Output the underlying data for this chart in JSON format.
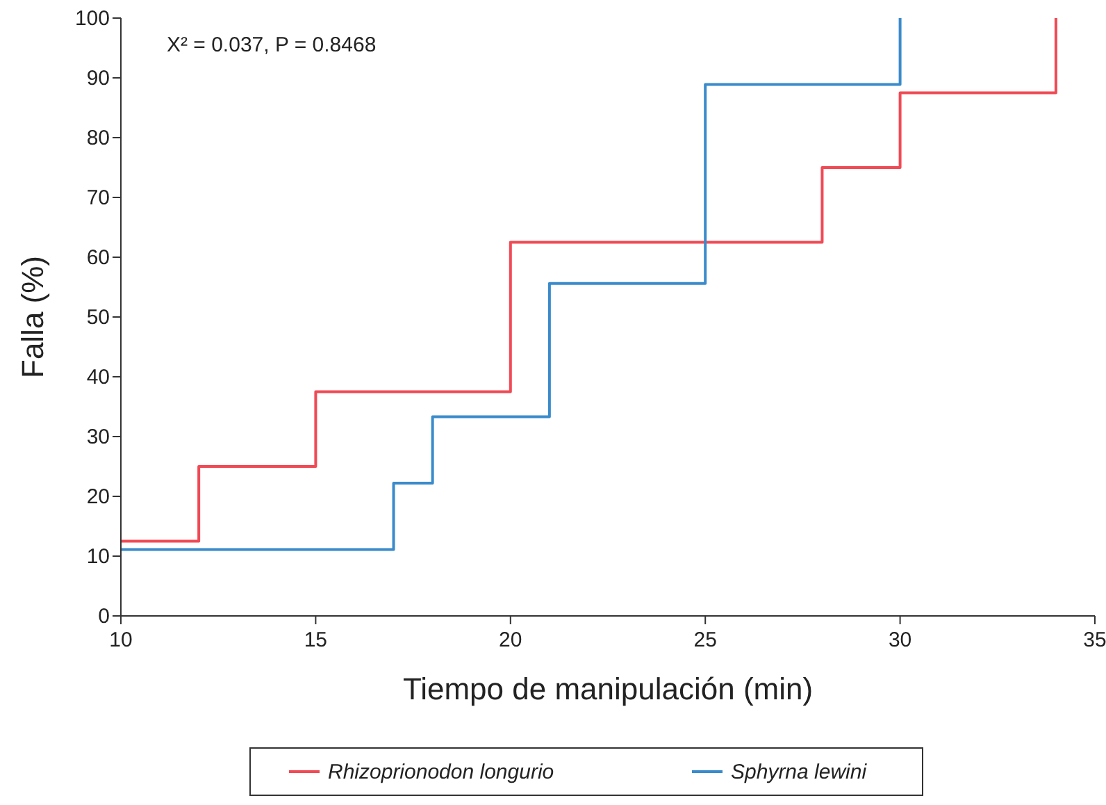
{
  "chart_data": {
    "type": "step",
    "xlabel": "Tiempo de manipulación (min)",
    "ylabel": "Falla (%)",
    "annotations": [
      "X² = 0.037, P = 0.8468"
    ],
    "xlim": [
      10,
      35
    ],
    "xticks": [
      10,
      15,
      20,
      25,
      30,
      35
    ],
    "ylim": [
      0,
      100
    ],
    "yticks": [
      0,
      10,
      20,
      30,
      40,
      50,
      60,
      70,
      80,
      90,
      100
    ],
    "grid": false,
    "legend": "bottom",
    "line_style": "solid",
    "marker": "none",
    "series": [
      {
        "name": "Rhizoprionodon longurio",
        "color": "#f04a55",
        "x": [
          10,
          12,
          15,
          20,
          28,
          30,
          34
        ],
        "values": [
          12.5,
          25,
          37.5,
          62.5,
          75,
          87.5,
          100
        ]
      },
      {
        "name": "Sphyrna lewini",
        "color": "#3a8bcb",
        "x": [
          10,
          17,
          18,
          21,
          25,
          30
        ],
        "values": [
          11.1,
          22.2,
          33.3,
          55.6,
          88.9,
          100
        ]
      }
    ]
  }
}
